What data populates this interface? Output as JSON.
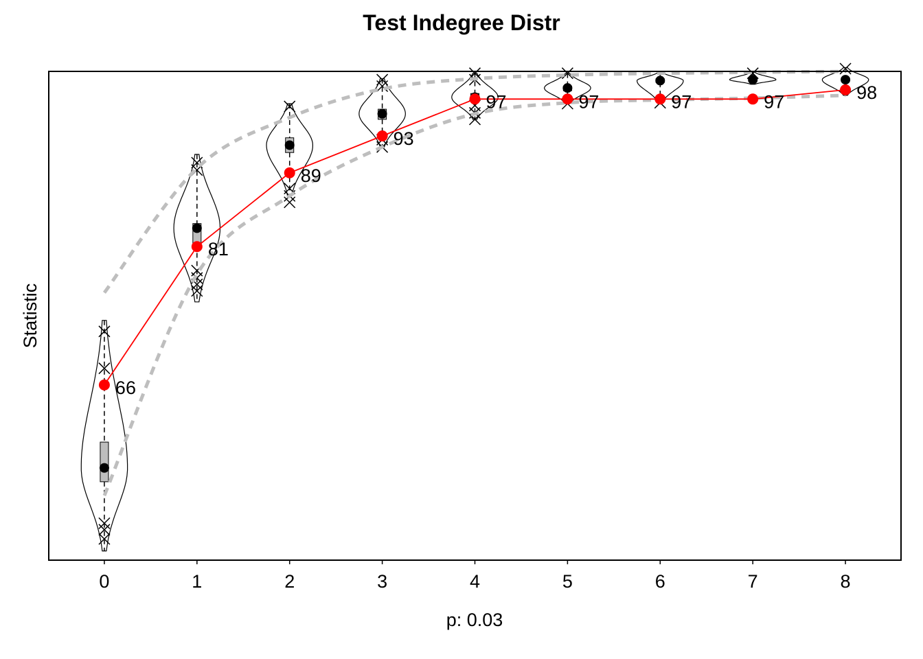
{
  "chart_data": {
    "type": "line",
    "title": "Test Indegree Distr",
    "xlabel": "p: 0.03",
    "ylabel": "Statistic",
    "x": [
      0,
      1,
      2,
      3,
      4,
      5,
      6,
      7,
      8
    ],
    "x_tick_labels": [
      "0",
      "1",
      "2",
      "3",
      "4",
      "5",
      "6",
      "7",
      "8"
    ],
    "xlim": [
      -0.6,
      8.6
    ],
    "ylim": [
      47,
      100
    ],
    "y_ticks_shown": false,
    "grid": false,
    "series": [
      {
        "role": "observed",
        "values": [
          66,
          81,
          89,
          93,
          97,
          97,
          97,
          97,
          98
        ],
        "labels": [
          "66",
          "81",
          "89",
          "93",
          "97",
          "97",
          "97",
          "97",
          "98"
        ],
        "color": "#ff0000"
      },
      {
        "role": "simulated_median",
        "values": [
          57,
          83,
          92,
          95.4,
          97.2,
          98.2,
          99.0,
          99.1,
          99.1
        ],
        "color": "#000000"
      },
      {
        "role": "simulated_upper_band",
        "values": [
          76,
          89.5,
          95,
          98.1,
          99.2,
          99.6,
          99.8,
          99.9,
          100
        ],
        "color": "#bebebe",
        "style": "dashed"
      },
      {
        "role": "simulated_lower_band",
        "values": [
          54,
          78,
          86.5,
          91.8,
          95.4,
          96.6,
          96.9,
          97.1,
          97.4
        ],
        "color": "#bebebe",
        "style": "dashed"
      }
    ],
    "distributions": [
      {
        "x": 0,
        "q1": 55.5,
        "q3": 59.8,
        "min": 48,
        "max": 73,
        "violin_halfwidth": 0.25,
        "outliers": [
          49.3,
          50.3,
          51.0,
          67.8,
          71.8
        ]
      },
      {
        "x": 1,
        "q1": 81.2,
        "q3": 83.5,
        "min": 75,
        "max": 91,
        "violin_halfwidth": 0.25,
        "outliers": [
          76.2,
          76.9,
          77.6,
          78.4,
          89.3,
          90.1
        ]
      },
      {
        "x": 2,
        "q1": 91.2,
        "q3": 92.8,
        "min": 86.5,
        "max": 96.5,
        "violin_halfwidth": 0.25,
        "outliers": [
          85.8,
          86.5,
          87.3,
          96.2
        ]
      },
      {
        "x": 3,
        "q1": 94.8,
        "q3": 95.9,
        "min": 91.8,
        "max": 99.2,
        "violin_halfwidth": 0.25,
        "outliers": [
          91.8,
          92.6,
          98.4,
          99.1
        ]
      },
      {
        "x": 4,
        "q1": 96.9,
        "q3": 97.6,
        "min": 94.8,
        "max": 99.8,
        "violin_halfwidth": 0.25,
        "outliers": [
          94.8,
          95.5,
          96.3,
          99.1,
          99.8
        ]
      },
      {
        "x": 5,
        "q1": 97.9,
        "q3": 98.4,
        "min": 96.5,
        "max": 99.8,
        "violin_halfwidth": 0.25,
        "outliers": [
          96.5,
          99.8
        ]
      },
      {
        "x": 6,
        "q1": 98.8,
        "q3": 99.2,
        "min": 96.6,
        "max": 99.9,
        "violin_halfwidth": 0.25,
        "outliers": [
          96.6
        ]
      },
      {
        "x": 7,
        "q1": 98.9,
        "q3": 99.3,
        "min": 98.6,
        "max": 99.9,
        "violin_halfwidth": 0.25,
        "outliers": [
          99.8
        ]
      },
      {
        "x": 8,
        "q1": 98.9,
        "q3": 99.3,
        "min": 97.4,
        "max": 100.4,
        "violin_halfwidth": 0.25,
        "outliers": [
          100.3
        ]
      }
    ]
  }
}
